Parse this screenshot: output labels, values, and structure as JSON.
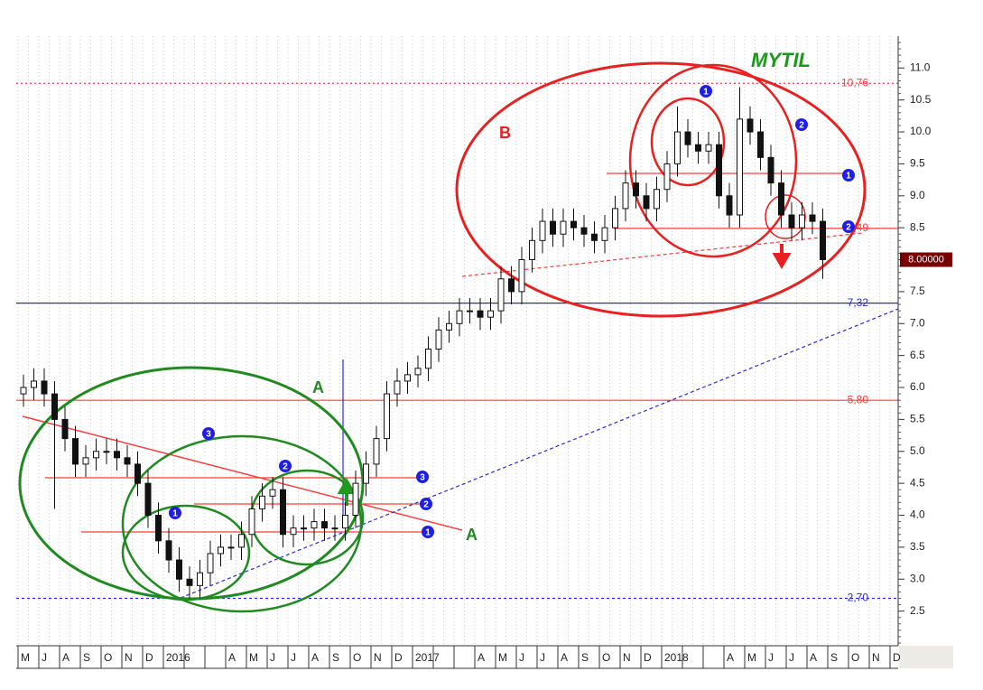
{
  "chart_data": {
    "type": "candlestick",
    "title": "MYTIL",
    "categories": [
      "M",
      "J",
      "A",
      "S",
      "O",
      "N",
      "D",
      "2016",
      null,
      null,
      "A",
      "M",
      "J",
      "J",
      "A",
      "S",
      "O",
      "N",
      "D",
      "2017",
      null,
      null,
      "A",
      "M",
      "J",
      "J",
      "A",
      "S",
      "O",
      "N",
      "D",
      "2018",
      null,
      null,
      "A",
      "M",
      "J",
      "J",
      "A",
      "S",
      "O",
      "N",
      "D"
    ],
    "candles": {
      "x": [
        0,
        0.5,
        1,
        1.5,
        2,
        2.5,
        3,
        3.5,
        4,
        4.5,
        5,
        5.5,
        6,
        6.5,
        7,
        7.5,
        8,
        8.5,
        9,
        9.5,
        10,
        10.5,
        11,
        11.5,
        12,
        12.5,
        13,
        13.5,
        14,
        14.5,
        15,
        15.5,
        16,
        16.5,
        17,
        17.5,
        18,
        18.5,
        19,
        19.5,
        20,
        20.5,
        21,
        21.5,
        22,
        22.5,
        23,
        23.5,
        24,
        24.5,
        25,
        25.5,
        26,
        26.5,
        27,
        27.5,
        28,
        28.5,
        29,
        29.5,
        30,
        30.5,
        31,
        31.5,
        32,
        32.5,
        33,
        33.5,
        34,
        34.5,
        35,
        35.5,
        36,
        36.5,
        37,
        37.5,
        38,
        38.5
      ],
      "open": [
        5.9,
        6.0,
        6.1,
        5.9,
        5.5,
        5.2,
        4.8,
        4.9,
        5.0,
        5.0,
        4.9,
        4.8,
        4.5,
        4.0,
        3.6,
        3.3,
        3.0,
        2.9,
        3.1,
        3.4,
        3.5,
        3.5,
        3.7,
        4.1,
        4.3,
        4.4,
        3.7,
        3.8,
        3.8,
        3.9,
        3.8,
        3.8,
        4.0,
        4.5,
        4.8,
        5.2,
        5.9,
        6.1,
        6.2,
        6.3,
        6.6,
        6.9,
        7.0,
        7.2,
        7.2,
        7.1,
        7.2,
        7.7,
        7.5,
        8.0,
        8.3,
        8.6,
        8.4,
        8.6,
        8.5,
        8.4,
        8.3,
        8.5,
        8.8,
        9.2,
        9.0,
        8.8,
        9.1,
        9.5,
        10.0,
        9.8,
        9.7,
        9.8,
        9.0,
        8.7,
        10.2,
        10.0,
        9.6,
        9.2,
        8.7,
        8.5,
        8.7,
        8.6
      ],
      "high": [
        6.2,
        6.3,
        6.3,
        6.1,
        5.7,
        5.4,
        5.1,
        5.2,
        5.2,
        5.2,
        5.1,
        5.0,
        4.7,
        4.2,
        3.8,
        3.5,
        3.2,
        3.3,
        3.6,
        3.7,
        3.7,
        3.9,
        4.3,
        4.5,
        4.6,
        4.6,
        4.0,
        4.0,
        4.1,
        4.1,
        4.0,
        4.2,
        4.7,
        5.0,
        5.4,
        6.1,
        6.3,
        6.4,
        6.5,
        6.8,
        7.1,
        7.2,
        7.4,
        7.4,
        7.4,
        7.4,
        7.9,
        7.9,
        8.2,
        8.5,
        8.8,
        8.8,
        8.8,
        8.8,
        8.7,
        8.6,
        8.7,
        9.0,
        9.4,
        9.4,
        9.2,
        9.3,
        9.7,
        10.4,
        10.2,
        10.0,
        10.0,
        10.0,
        9.2,
        10.7,
        10.4,
        10.2,
        9.8,
        9.4,
        8.9,
        8.9,
        8.9,
        8.8
      ],
      "low": [
        5.7,
        5.8,
        5.7,
        4.1,
        5.0,
        4.6,
        4.6,
        4.7,
        4.8,
        4.7,
        4.6,
        4.3,
        3.8,
        3.4,
        3.1,
        2.8,
        2.7,
        2.7,
        2.9,
        3.2,
        3.3,
        3.3,
        3.5,
        3.9,
        4.1,
        3.5,
        3.5,
        3.6,
        3.6,
        3.6,
        3.6,
        3.6,
        3.8,
        4.3,
        4.6,
        5.0,
        5.7,
        5.9,
        6.0,
        6.1,
        6.4,
        6.7,
        6.8,
        7.0,
        6.9,
        6.9,
        7.0,
        7.3,
        7.3,
        7.8,
        8.1,
        8.2,
        8.2,
        8.3,
        8.2,
        8.1,
        8.1,
        8.3,
        8.6,
        8.8,
        8.6,
        8.6,
        8.9,
        9.3,
        9.6,
        9.5,
        9.5,
        8.8,
        8.5,
        8.5,
        9.8,
        9.4,
        9.0,
        8.5,
        8.3,
        8.3,
        8.4,
        7.7
      ],
      "close": [
        6.0,
        6.1,
        5.9,
        5.5,
        5.2,
        4.8,
        4.9,
        5.0,
        5.0,
        4.9,
        4.8,
        4.5,
        4.0,
        3.6,
        3.3,
        3.0,
        2.9,
        3.1,
        3.4,
        3.5,
        3.5,
        3.7,
        4.1,
        4.3,
        4.4,
        3.7,
        3.8,
        3.8,
        3.9,
        3.8,
        3.8,
        4.0,
        4.5,
        4.8,
        5.2,
        5.9,
        6.1,
        6.2,
        6.3,
        6.6,
        6.9,
        7.0,
        7.2,
        7.2,
        7.1,
        7.2,
        7.7,
        7.5,
        8.0,
        8.3,
        8.6,
        8.4,
        8.6,
        8.5,
        8.4,
        8.3,
        8.5,
        8.8,
        9.2,
        9.0,
        8.8,
        9.1,
        9.5,
        10.0,
        9.8,
        9.7,
        9.8,
        9.0,
        8.7,
        10.2,
        10.0,
        9.6,
        9.2,
        8.7,
        8.5,
        8.7,
        8.6,
        8.0
      ]
    },
    "ylim": [
      2.0,
      11.4
    ],
    "yticks": [
      2.5,
      {
        "value": 3,
        "label": "3.0"
      },
      3.5,
      {
        "value": 4,
        "label": "4.0"
      },
      4.5,
      {
        "value": 5,
        "label": "5.0"
      },
      5.5,
      {
        "value": 6,
        "label": "6.0"
      },
      6.5,
      {
        "value": 7,
        "label": "7.0"
      },
      7.5,
      {
        "value": 8,
        "label": "8.0"
      },
      8.5,
      {
        "value": 9,
        "label": "9.0"
      },
      9.5,
      {
        "value": 10,
        "label": "10.0"
      },
      10.5,
      {
        "value": 11,
        "label": "11.0"
      }
    ],
    "levels": [
      {
        "value": 10.76,
        "label": "10,76",
        "color": "#ff3b3b"
      },
      {
        "value": 8.49,
        "label": "8,49",
        "color": "#ff3b3b"
      },
      {
        "value": 7.32,
        "label": "7,32",
        "color": "#2a2ad8"
      },
      {
        "value": 5.8,
        "label": "5,80",
        "color": "#ff3b3b"
      },
      {
        "value": 2.7,
        "label": "2,70",
        "color": "#2a2ad8"
      }
    ],
    "last": {
      "value": 8,
      "label": "8.00000"
    },
    "labels": [
      "A",
      "A",
      "B"
    ],
    "markers": [
      "1",
      "2",
      "3",
      "3",
      "2",
      "1",
      "1",
      "2",
      "1",
      "2"
    ],
    "grid": true
  }
}
